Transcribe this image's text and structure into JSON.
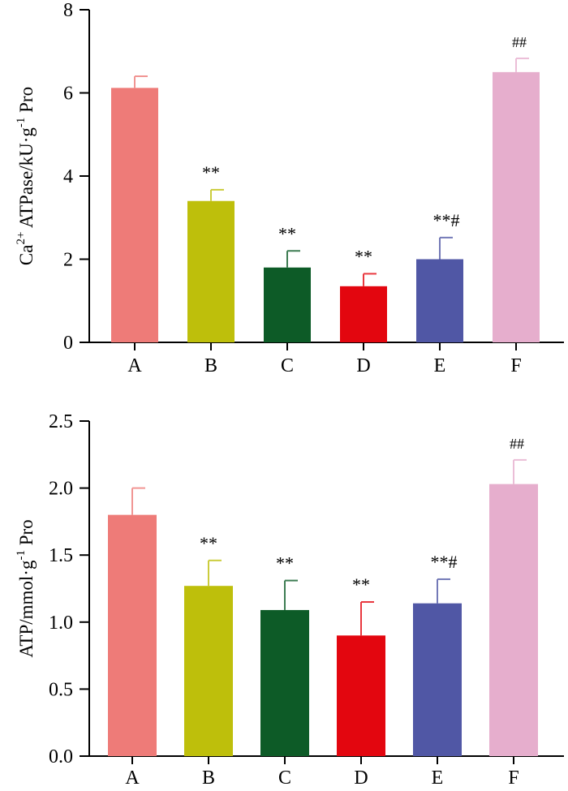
{
  "chart_data": [
    {
      "type": "bar",
      "title": "",
      "xlabel": "",
      "ylabel": {
        "prefix": "Ca",
        "sup1": "2+",
        "middle": " ATPase/kU·g",
        "sup2": "-1",
        "suffix": " Pro"
      },
      "ylim": [
        0,
        8
      ],
      "yticks": [
        "0",
        "2",
        "4",
        "6",
        "8"
      ],
      "categories": [
        "A",
        "B",
        "C",
        "D",
        "E",
        "F"
      ],
      "values": [
        6.12,
        3.4,
        1.8,
        1.35,
        2.0,
        6.5
      ],
      "errors": [
        0.28,
        0.27,
        0.4,
        0.3,
        0.52,
        0.33
      ],
      "significance": [
        "",
        "**",
        "**",
        "**",
        "**#",
        "##"
      ],
      "colors": [
        "#ee7b78",
        "#bebf0b",
        "#0d5b27",
        "#e3060f",
        "#5057a5",
        "#e6aecd"
      ]
    },
    {
      "type": "bar",
      "title": "",
      "xlabel": "",
      "ylabel": {
        "prefix": "ATP/mmol·g",
        "sup1": "-1",
        "suffix": " Pro"
      },
      "ylim": [
        0,
        2.5
      ],
      "yticks": [
        "0.0",
        "0.5",
        "1.0",
        "1.5",
        "2.0",
        "2.5"
      ],
      "categories": [
        "A",
        "B",
        "C",
        "D",
        "E",
        "F"
      ],
      "values": [
        1.8,
        1.27,
        1.09,
        0.9,
        1.14,
        2.03
      ],
      "errors": [
        0.2,
        0.19,
        0.22,
        0.25,
        0.18,
        0.18
      ],
      "significance": [
        "",
        "**",
        "**",
        "**",
        "**#",
        "##"
      ],
      "colors": [
        "#ee7b78",
        "#bebf0b",
        "#0d5b27",
        "#e3060f",
        "#5057a5",
        "#e6aecd"
      ]
    }
  ]
}
